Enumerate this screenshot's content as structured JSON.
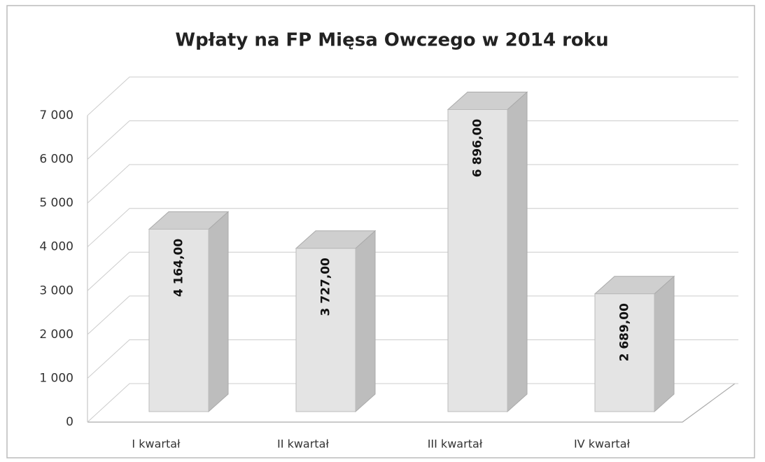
{
  "chart_data": {
    "type": "bar",
    "title": "Wpłaty na FP Mięsa Owczego w 2014 roku",
    "categories": [
      "I kwartał",
      "II kwartał",
      "III kwartał",
      "IV kwartał"
    ],
    "values": [
      4164,
      3727,
      6896,
      2689
    ],
    "value_labels": [
      "4 164,00",
      "3 727,00",
      "6 896,00",
      "2 689,00"
    ],
    "color": "#e4e4e4",
    "ylim": [
      0,
      7000
    ],
    "yticks": [
      0,
      {
        "value": 1000,
        "label": "1 000"
      },
      {
        "value": 2000,
        "label": "2 000"
      },
      {
        "value": 3000,
        "label": "3 000"
      },
      {
        "value": 4000,
        "label": "4 000"
      },
      {
        "value": 5000,
        "label": "5 000"
      },
      {
        "value": 6000,
        "label": "6 000"
      },
      {
        "value": 7000,
        "label": "7 000"
      }
    ],
    "grid": true
  }
}
